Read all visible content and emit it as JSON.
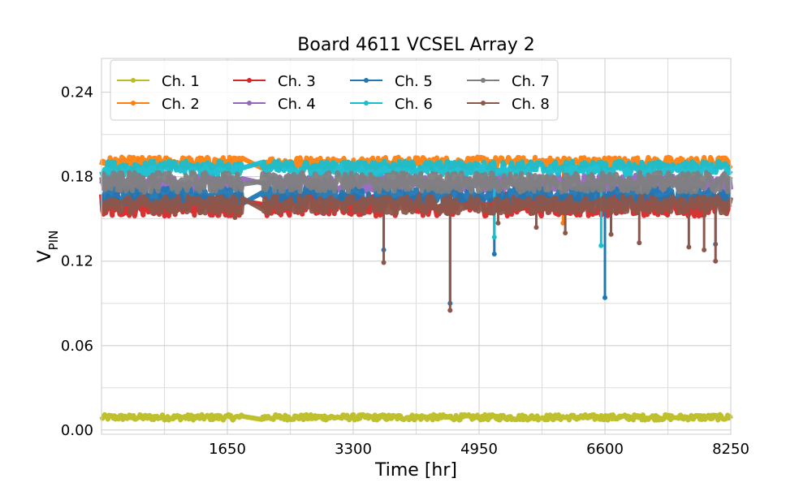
{
  "chart_data": {
    "type": "line",
    "title": "Board 4611 VCSEL Array 2",
    "xlabel": "Time [hr]",
    "ylabel_main": "V",
    "ylabel_sub": "PIN",
    "xlim": [
      0,
      8250
    ],
    "ylim": [
      -0.003,
      0.264
    ],
    "xticks": [
      1650,
      3300,
      4950,
      6600,
      8250
    ],
    "xtick_labels": [
      "1650",
      "3300",
      "4950",
      "6600",
      "8250"
    ],
    "yticks": [
      0.0,
      0.06,
      0.12,
      0.18,
      0.24
    ],
    "ytick_labels": [
      "0.00",
      "0.06",
      "0.12",
      "0.18",
      "0.24"
    ],
    "grid": true,
    "legend_position": "top-left",
    "segments": [
      [
        0,
        1850
      ],
      [
        2100,
        3100
      ],
      [
        3150,
        4950
      ],
      [
        4970,
        7500
      ],
      [
        7550,
        8250
      ]
    ],
    "series": [
      {
        "name": "Ch. 1",
        "color": "#bcbd22",
        "base": 0.009,
        "spread": 0.002,
        "dips": []
      },
      {
        "name": "Ch. 2",
        "color": "#ff7f0e",
        "base": 0.19,
        "spread": 0.004,
        "dips": [
          [
            6050,
            0.147
          ]
        ]
      },
      {
        "name": "Ch. 3",
        "color": "#d62728",
        "base": 0.16,
        "spread": 0.008,
        "dips": []
      },
      {
        "name": "Ch. 4",
        "color": "#9467bd",
        "base": 0.175,
        "spread": 0.006,
        "dips": []
      },
      {
        "name": "Ch. 5",
        "color": "#1f77b4",
        "base": 0.166,
        "spread": 0.006,
        "dips": [
          [
            3700,
            0.128
          ],
          [
            4570,
            0.09
          ],
          [
            5150,
            0.125
          ],
          [
            6600,
            0.094
          ],
          [
            8050,
            0.132
          ]
        ]
      },
      {
        "name": "Ch. 6",
        "color": "#17becf",
        "base": 0.186,
        "spread": 0.005,
        "dips": [
          [
            5150,
            0.137
          ],
          [
            6550,
            0.131
          ]
        ]
      },
      {
        "name": "Ch. 7",
        "color": "#7f7f7f",
        "base": 0.176,
        "spread": 0.007,
        "dips": []
      },
      {
        "name": "Ch. 8",
        "color": "#8c564b",
        "base": 0.16,
        "spread": 0.006,
        "dips": [
          [
            1750,
            0.151
          ],
          [
            3700,
            0.119
          ],
          [
            4570,
            0.085
          ],
          [
            5200,
            0.147
          ],
          [
            5700,
            0.144
          ],
          [
            6080,
            0.14
          ],
          [
            6680,
            0.139
          ],
          [
            7050,
            0.133
          ],
          [
            7700,
            0.13
          ],
          [
            7900,
            0.128
          ],
          [
            8050,
            0.12
          ]
        ]
      }
    ]
  }
}
